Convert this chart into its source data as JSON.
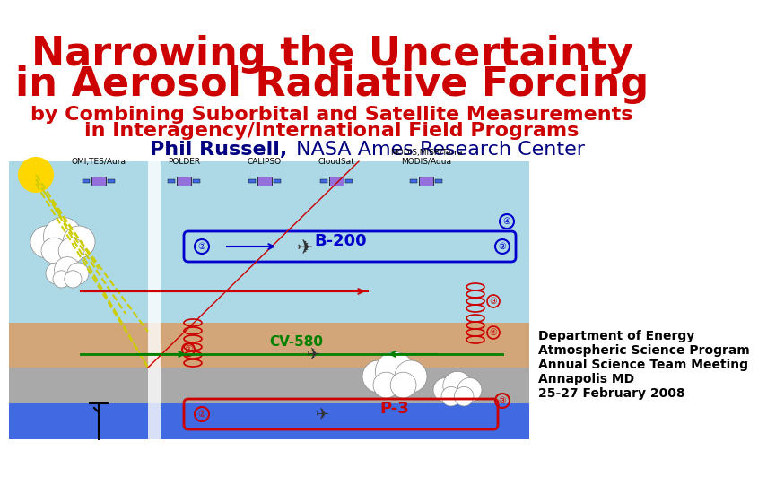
{
  "title_line1": "Narrowing the Uncertainty",
  "title_line2": "in Aerosol Radiative Forcing",
  "title_color": "#cc0000",
  "title_fontsize": 32,
  "subtitle_line1": "by Combining Suborbital and Satellite Measurements",
  "subtitle_line2": "in Interagency/International Field Programs",
  "subtitle_color": "#cc0000",
  "subtitle_fontsize": 16,
  "author_bold": "Phil Russell,",
  "author_normal": " NASA Ames Research Center",
  "author_fontsize": 16,
  "author_color": "#000080",
  "info_lines": [
    "Department of Energy",
    "Atmospheric Science Program",
    "Annual Science Team Meeting",
    "Annapolis MD",
    "25-27 February 2008"
  ],
  "info_fontsize": 10,
  "info_color": "#000000",
  "background_color": "#ffffff"
}
